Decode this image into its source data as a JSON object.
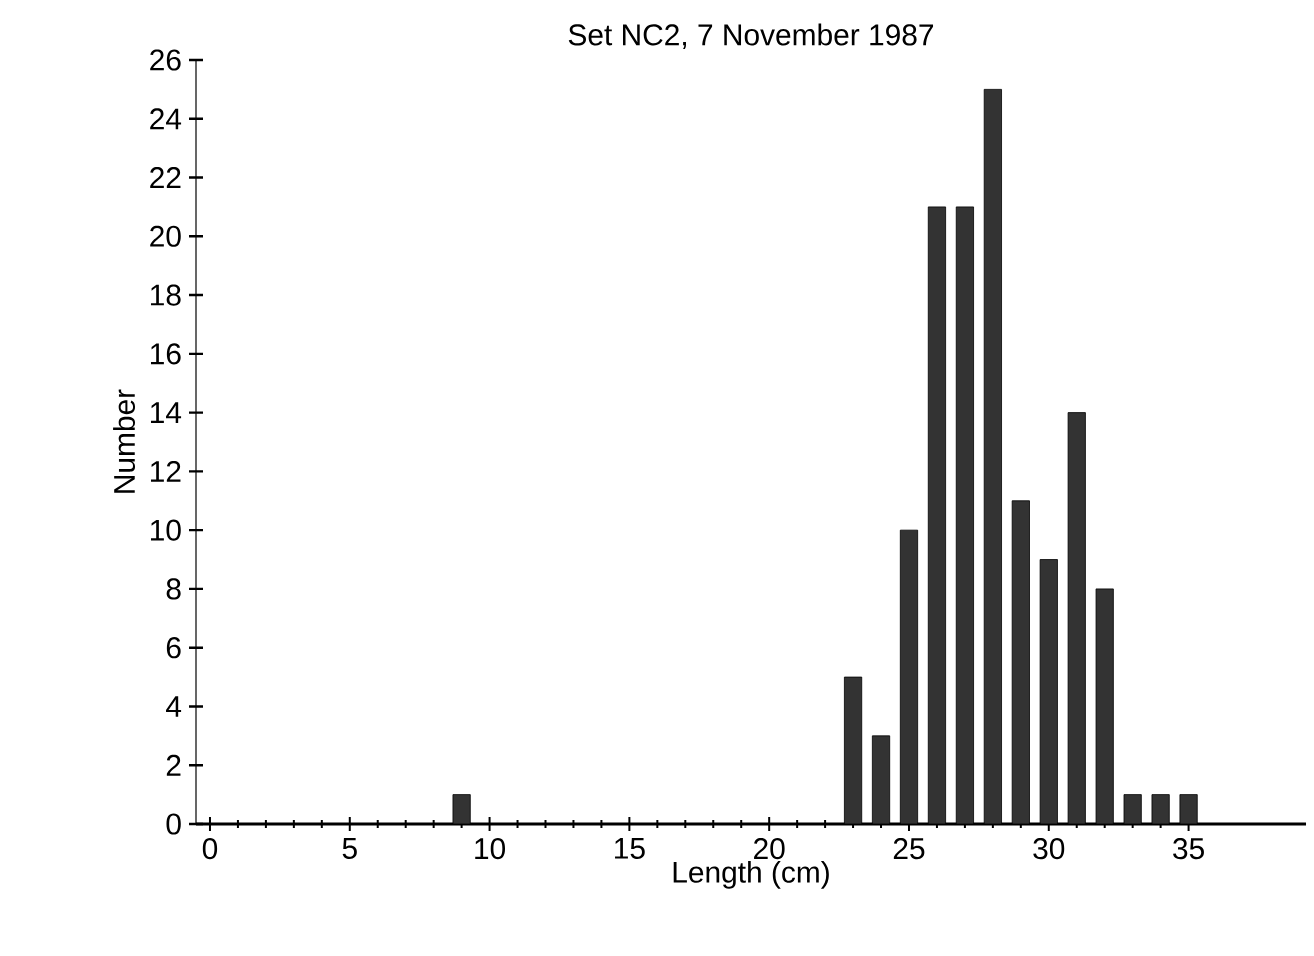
{
  "chart_data": {
    "type": "bar",
    "title": "Set NC2, 7 November 1987",
    "xlabel": "Length (cm)",
    "ylabel": "Number",
    "x": [
      9,
      23,
      24,
      25,
      26,
      27,
      28,
      29,
      30,
      31,
      32,
      33,
      34,
      35
    ],
    "values": [
      1,
      5,
      3,
      10,
      21,
      21,
      25,
      11,
      9,
      14,
      8,
      1,
      1,
      1
    ],
    "color": "#333333",
    "xlim": [
      -0.5,
      39.2
    ],
    "ylim": [
      0,
      26
    ],
    "xticks": [
      0,
      5,
      10,
      15,
      20,
      25,
      30,
      35
    ],
    "yticks": [
      0,
      2,
      4,
      6,
      8,
      10,
      12,
      14,
      16,
      18,
      20,
      22,
      24,
      26
    ],
    "grid": false
  }
}
